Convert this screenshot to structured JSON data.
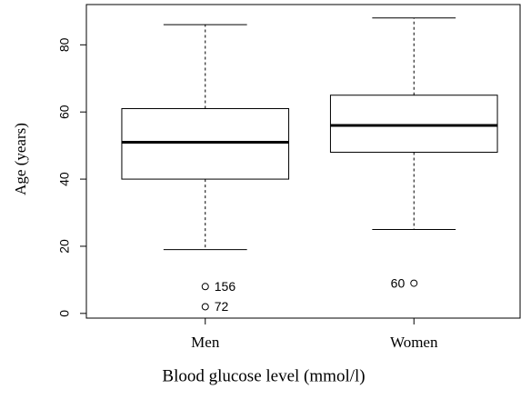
{
  "chart_data": {
    "type": "boxplot",
    "x_label": "Blood glucose level (mmol/l)",
    "y_label": "Age (years)",
    "categories": [
      "Men",
      "Women"
    ],
    "boxes": [
      {
        "whislo": 19,
        "q1": 40,
        "med": 51,
        "q3": 61,
        "whishi": 86,
        "outliers": [
          8,
          2
        ],
        "outlier_labels": [
          "156",
          "72"
        ]
      },
      {
        "whislo": 25,
        "q1": 48,
        "med": 56,
        "q3": 65,
        "whishi": 88,
        "outliers": [
          9
        ],
        "outlier_labels": [
          "60"
        ]
      }
    ],
    "ylim": [
      -1.4,
      92
    ],
    "yticks": [
      0,
      20,
      40,
      60,
      80
    ],
    "color": "#000000"
  }
}
